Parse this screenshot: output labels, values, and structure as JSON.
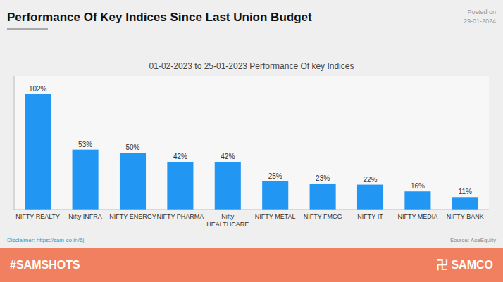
{
  "chart_data": {
    "type": "bar",
    "title": "Performance Of Key Indices Since Last Union Budget",
    "subtitle": "01-02-2023 to 25-01-2023 Performance Of key Indices",
    "categories": [
      "NIFTY REALTY",
      "Nifty INFRA",
      "NIFTY ENERGY",
      "NIFTY PHARMA",
      "Nifty\nHEALTHCARE",
      "NIFTY METAL",
      "NIFTY FMCG",
      "NIFTY IT",
      "NIFTY MEDIA",
      "NIFTY BANK"
    ],
    "values": [
      102,
      53,
      50,
      42,
      42,
      25,
      23,
      22,
      16,
      11
    ],
    "value_labels": [
      "102%",
      "53%",
      "50%",
      "42%",
      "42%",
      "25%",
      "23%",
      "22%",
      "16%",
      "11%"
    ],
    "data_labels": true,
    "color": "#2196F3",
    "ylim": [
      0,
      118
    ],
    "grid": false,
    "tick_labels": "x",
    "annotations": [
      "Posted on",
      "29-01-2024",
      "Disclaimer: https://sam-co.in/6j",
      "Source: AceEquity",
      "#SAMSHOTS",
      "卍 SAMCO"
    ]
  }
}
